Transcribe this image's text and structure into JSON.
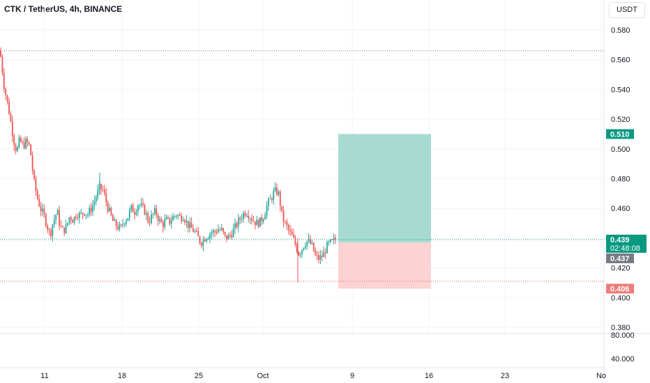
{
  "header": {
    "title": "CTK / TetherUS, 4h, BINANCE",
    "currency_button": "USDT"
  },
  "colors": {
    "up": "#26a69a",
    "down": "#ef5350",
    "profit_zone": "#a7dbd1",
    "loss_zone": "#fbd3d3",
    "stop": "#ef7b7b",
    "current": "#089981",
    "countdown": "#787b86"
  },
  "chart_data": {
    "type": "candlestick",
    "title": "CTK / TetherUS, 4h, BINANCE",
    "ylim": [
      0.377,
      0.59
    ],
    "y_ticks": [
      "0.580",
      "0.560",
      "0.540",
      "0.520",
      "0.500",
      "0.480",
      "0.460",
      "0.420",
      "0.400",
      "0.380"
    ],
    "volume_ticks": [
      "80.000",
      "40.000"
    ],
    "x_ticks": [
      "11",
      "18",
      "25",
      "Oct",
      "9",
      "16",
      "23",
      "No"
    ],
    "grid": true,
    "price_labels": {
      "target": "0.510",
      "last": "0.439",
      "countdown": "02:48:08",
      "previous_close": "0.437",
      "stop": "0.406"
    },
    "levels": {
      "high_line": 0.566,
      "last_line": 0.439,
      "low_line": 0.411
    },
    "position": {
      "entry": 0.437,
      "target": 0.51,
      "stop": 0.406
    },
    "price_path": [
      [
        0,
        0.566
      ],
      [
        6,
        0.542
      ],
      [
        13,
        0.525
      ],
      [
        20,
        0.505
      ],
      [
        24,
        0.498
      ],
      [
        28,
        0.506
      ],
      [
        33,
        0.502
      ],
      [
        38,
        0.505
      ],
      [
        43,
        0.501
      ],
      [
        48,
        0.48
      ],
      [
        53,
        0.468
      ],
      [
        58,
        0.46
      ],
      [
        63,
        0.455
      ],
      [
        68,
        0.448
      ],
      [
        72,
        0.442
      ],
      [
        75,
        0.449
      ],
      [
        78,
        0.453
      ],
      [
        82,
        0.458
      ],
      [
        86,
        0.448
      ],
      [
        90,
        0.445
      ],
      [
        95,
        0.447
      ],
      [
        100,
        0.455
      ],
      [
        105,
        0.452
      ],
      [
        110,
        0.457
      ],
      [
        115,
        0.455
      ],
      [
        120,
        0.458
      ],
      [
        126,
        0.456
      ],
      [
        132,
        0.461
      ],
      [
        138,
        0.468
      ],
      [
        143,
        0.474
      ],
      [
        148,
        0.472
      ],
      [
        153,
        0.463
      ],
      [
        158,
        0.456
      ],
      [
        163,
        0.45
      ],
      [
        168,
        0.448
      ],
      [
        173,
        0.446
      ],
      [
        178,
        0.452
      ],
      [
        183,
        0.454
      ],
      [
        188,
        0.46
      ],
      [
        193,
        0.458
      ],
      [
        198,
        0.463
      ],
      [
        203,
        0.461
      ],
      [
        208,
        0.458
      ],
      [
        213,
        0.451
      ],
      [
        218,
        0.455
      ],
      [
        223,
        0.458
      ],
      [
        228,
        0.452
      ],
      [
        233,
        0.449
      ],
      [
        238,
        0.452
      ],
      [
        243,
        0.451
      ],
      [
        248,
        0.454
      ],
      [
        253,
        0.456
      ],
      [
        258,
        0.454
      ],
      [
        263,
        0.455
      ],
      [
        268,
        0.45
      ],
      [
        273,
        0.447
      ],
      [
        278,
        0.445
      ],
      [
        283,
        0.441
      ],
      [
        288,
        0.437
      ],
      [
        293,
        0.44
      ],
      [
        298,
        0.442
      ],
      [
        303,
        0.444
      ],
      [
        308,
        0.444
      ],
      [
        313,
        0.446
      ],
      [
        318,
        0.445
      ],
      [
        323,
        0.44
      ],
      [
        328,
        0.441
      ],
      [
        333,
        0.444
      ],
      [
        338,
        0.448
      ],
      [
        343,
        0.452
      ],
      [
        348,
        0.456
      ],
      [
        353,
        0.458
      ],
      [
        358,
        0.455
      ],
      [
        363,
        0.452
      ],
      [
        368,
        0.45
      ],
      [
        373,
        0.451
      ],
      [
        378,
        0.455
      ],
      [
        383,
        0.462
      ],
      [
        388,
        0.466
      ],
      [
        392,
        0.47
      ],
      [
        396,
        0.472
      ],
      [
        400,
        0.469
      ],
      [
        404,
        0.456
      ],
      [
        408,
        0.45
      ],
      [
        412,
        0.447
      ],
      [
        416,
        0.443
      ],
      [
        420,
        0.44
      ],
      [
        424,
        0.435
      ],
      [
        428,
        0.43
      ],
      [
        432,
        0.432
      ],
      [
        436,
        0.436
      ],
      [
        440,
        0.438
      ],
      [
        444,
        0.437
      ],
      [
        448,
        0.434
      ],
      [
        452,
        0.428
      ],
      [
        456,
        0.426
      ],
      [
        460,
        0.427
      ],
      [
        464,
        0.429
      ],
      [
        468,
        0.434
      ],
      [
        472,
        0.436
      ],
      [
        476,
        0.437
      ],
      [
        481,
        0.439
      ]
    ]
  }
}
